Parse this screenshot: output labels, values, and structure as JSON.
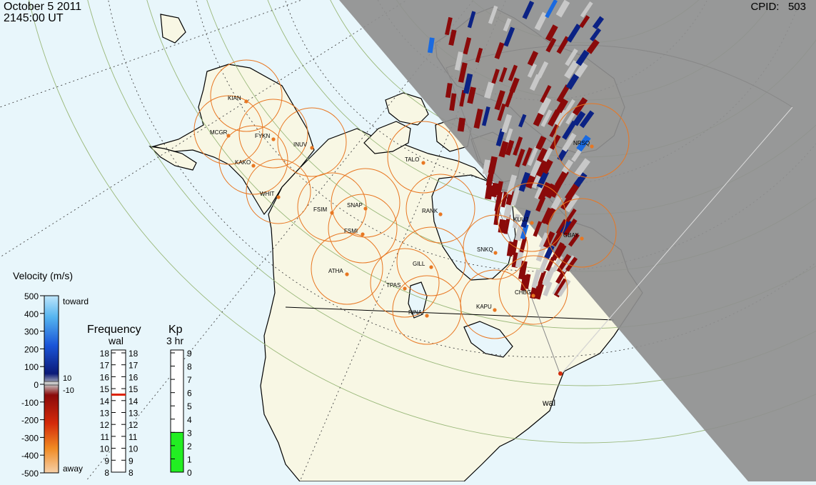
{
  "header": {
    "date": "October  5 2011",
    "time": "2145:00 UT",
    "cpid_label": "CPID:",
    "cpid_value": "503"
  },
  "stations": [
    {
      "code": "KIAN"
    },
    {
      "code": "MCGR"
    },
    {
      "code": "FYKN"
    },
    {
      "code": "INUV"
    },
    {
      "code": "KAKO"
    },
    {
      "code": "WHIT"
    },
    {
      "code": "FSIM"
    },
    {
      "code": "SNAP"
    },
    {
      "code": "FSMI"
    },
    {
      "code": "RANK"
    },
    {
      "code": "TALO"
    },
    {
      "code": "NRSQ"
    },
    {
      "code": "KUUJ"
    },
    {
      "code": "GBAY"
    },
    {
      "code": "SNKQ"
    },
    {
      "code": "GILL"
    },
    {
      "code": "ATHA"
    },
    {
      "code": "TPAS"
    },
    {
      "code": "RINA"
    },
    {
      "code": "KAPU"
    },
    {
      "code": "CHBG"
    }
  ],
  "radar_label": "wal",
  "velocity_scale": {
    "title": "Velocity (m/s)",
    "ticks": [
      "500",
      "400",
      "300",
      "200",
      "100",
      "0",
      "-100",
      "-200",
      "-300",
      "-400",
      "-500"
    ],
    "toward_label": "toward",
    "away_label": "away",
    "marker_high": "10",
    "marker_low": "-10"
  },
  "frequency_scale": {
    "title": "Frequency",
    "subtitle": "wal",
    "ticks": [
      "18",
      "17",
      "16",
      "15",
      "14",
      "13",
      "12",
      "11",
      "10",
      "9",
      "8"
    ],
    "current_mhz": 14.5
  },
  "kp_scale": {
    "title": "Kp",
    "subtitle": "3 hr",
    "ticks": [
      "9",
      "8",
      "7",
      "6",
      "5",
      "4",
      "3",
      "2",
      "1",
      "0"
    ],
    "kp_value": 3
  },
  "colors": {
    "ocean": "#e8f6fb",
    "land": "#f8f7e4",
    "night_shade": "#959595",
    "fov_circle": "#e87722",
    "grid": "#9ab87a",
    "velocity_toward": "#0b2284",
    "velocity_away": "#8a0a0a",
    "velocity_low": "#c8c8c8",
    "kp_fill": "#22ee22",
    "freq_marker": "#dd2200"
  }
}
